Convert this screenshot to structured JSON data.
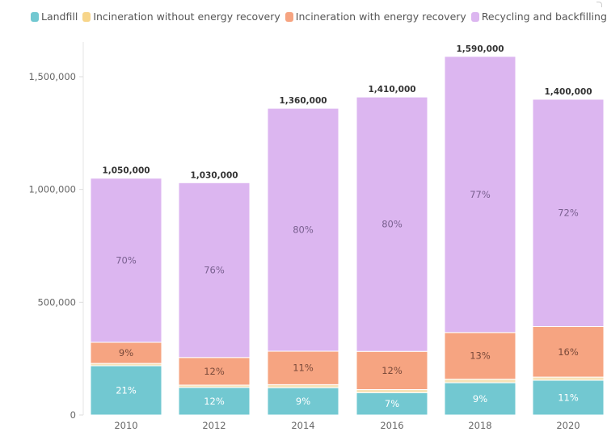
{
  "legend": [
    {
      "label": "Landfill",
      "color": "#72c8d1"
    },
    {
      "label": "Incineration without energy recovery",
      "color": "#f7d58a"
    },
    {
      "label": "Incineration with energy recovery",
      "color": "#f6a481"
    },
    {
      "label": "Recycling and backfilling",
      "color": "#dcb6f0"
    }
  ],
  "chart_data": {
    "type": "bar",
    "stacked": true,
    "title": "",
    "xlabel": "",
    "ylabel": "",
    "categories": [
      "2010",
      "2012",
      "2014",
      "2016",
      "2018",
      "2020"
    ],
    "totals": [
      1050000,
      1030000,
      1360000,
      1410000,
      1590000,
      1400000
    ],
    "total_labels": [
      "1,050,000",
      "1,030,000",
      "1,360,000",
      "1,410,000",
      "1,590,000",
      "1,400,000"
    ],
    "series": [
      {
        "name": "Landfill",
        "color": "#72c8d1",
        "label_color": "#ffffff",
        "share_pct": [
          21,
          12,
          9,
          7,
          9,
          11
        ],
        "labels": [
          "21%",
          "12%",
          "9%",
          "7%",
          "9%",
          "11%"
        ]
      },
      {
        "name": "Incineration without energy recovery",
        "color": "#f7e3b8",
        "label_color": "#8a6d4a",
        "share_pct": [
          1,
          1,
          1,
          1,
          1,
          1
        ],
        "labels": [
          "",
          "",
          "",
          "",
          "",
          ""
        ]
      },
      {
        "name": "Incineration with energy recovery",
        "color": "#f6a481",
        "label_color": "#7a4a3a",
        "share_pct": [
          9,
          12,
          11,
          12,
          13,
          16
        ],
        "labels": [
          "9%",
          "12%",
          "11%",
          "12%",
          "13%",
          "16%"
        ]
      },
      {
        "name": "Recycling and backfilling",
        "color": "#dcb6f0",
        "label_color": "#7a6090",
        "share_pct": [
          70,
          76,
          80,
          80,
          77,
          72
        ],
        "labels": [
          "70%",
          "76%",
          "80%",
          "80%",
          "77%",
          "72%"
        ]
      }
    ],
    "yticks": [
      0,
      500000,
      1000000,
      1500000
    ],
    "ytick_labels": [
      "0",
      "500,000",
      "1,000,000",
      "1,500,000"
    ],
    "ylim": [
      0,
      1650000
    ],
    "grid": false,
    "legend_position": "top"
  }
}
